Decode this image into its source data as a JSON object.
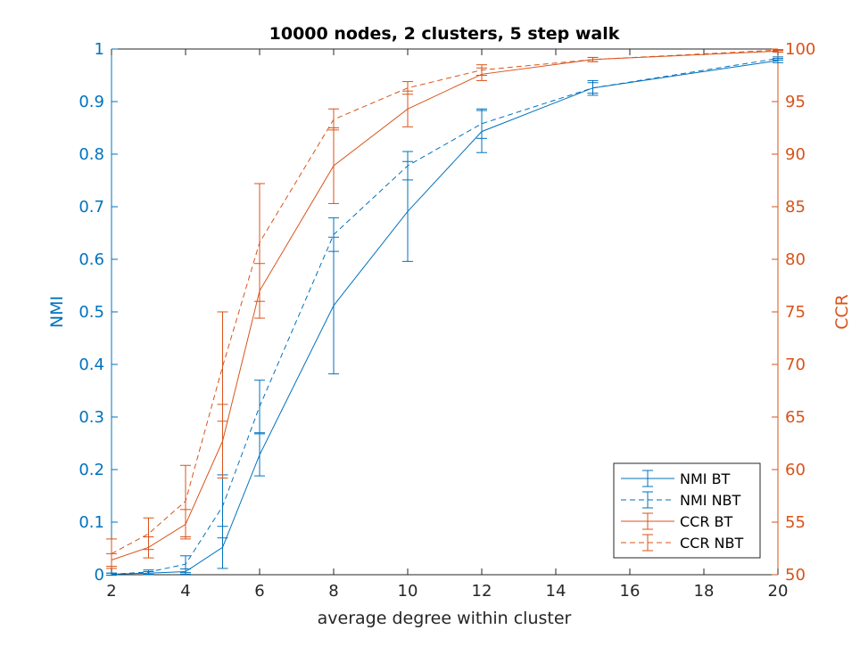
{
  "chart_data": {
    "type": "line",
    "title": "10000 nodes, 2 clusters, 5 step walk",
    "xlabel": "average degree within cluster",
    "ylabel_left": "NMI",
    "ylabel_right": "CCR",
    "xlim": [
      2,
      20
    ],
    "ylim_left": [
      0,
      1
    ],
    "ylim_right": [
      50,
      100
    ],
    "x_ticks": [
      "2",
      "4",
      "6",
      "8",
      "10",
      "12",
      "14",
      "16",
      "18",
      "20"
    ],
    "y_left_ticks": [
      "0",
      "0.1",
      "0.2",
      "0.3",
      "0.4",
      "0.5",
      "0.6",
      "0.7",
      "0.8",
      "0.9",
      "1"
    ],
    "y_right_ticks": [
      "50",
      "55",
      "60",
      "65",
      "70",
      "75",
      "80",
      "85",
      "90",
      "95",
      "100"
    ],
    "grid": false,
    "legend_position": "bottom-right",
    "colors": {
      "nmi": "#0072BD",
      "ccr": "#D95319"
    },
    "x": [
      2,
      3,
      4,
      5,
      6,
      8,
      10,
      12,
      15,
      20
    ],
    "series": [
      {
        "name": "NMI BT",
        "axis": "left",
        "style": "solid",
        "color": "#0072BD",
        "values": [
          0.001,
          0.003,
          0.006,
          0.052,
          0.228,
          0.512,
          0.691,
          0.843,
          0.926,
          0.978
        ],
        "err": [
          0.002,
          0.003,
          0.005,
          0.04,
          0.04,
          0.13,
          0.095,
          0.04,
          0.01,
          0.004
        ]
      },
      {
        "name": "NMI NBT",
        "axis": "left",
        "style": "dashed",
        "color": "#0072BD",
        "values": [
          0.001,
          0.005,
          0.02,
          0.13,
          0.32,
          0.647,
          0.778,
          0.858,
          0.926,
          0.982
        ],
        "err": [
          0.002,
          0.004,
          0.016,
          0.06,
          0.05,
          0.032,
          0.027,
          0.028,
          0.014,
          0.003
        ]
      },
      {
        "name": "CCR BT",
        "axis": "right",
        "style": "solid",
        "color": "#D95319",
        "values": [
          51.4,
          52.6,
          54.8,
          62.7,
          77.0,
          88.9,
          94.3,
          97.6,
          99.0,
          99.8
        ],
        "err": [
          0.6,
          1.0,
          1.4,
          3.5,
          2.6,
          3.6,
          1.7,
          0.6,
          0.2,
          0.1
        ]
      },
      {
        "name": "CCR NBT",
        "axis": "right",
        "style": "dashed",
        "color": "#D95319",
        "values": [
          52.0,
          53.9,
          57.0,
          69.8,
          81.6,
          93.3,
          96.3,
          98.0,
          99.0,
          99.9
        ],
        "err": [
          1.4,
          1.5,
          3.4,
          5.2,
          5.6,
          1.0,
          0.6,
          0.5,
          0.2,
          0.05
        ]
      }
    ]
  }
}
